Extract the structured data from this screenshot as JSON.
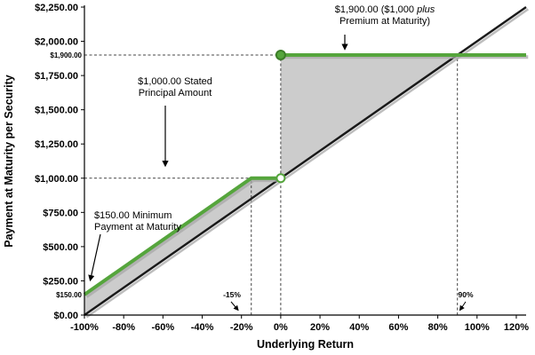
{
  "chart_data": {
    "type": "line",
    "title": "",
    "xlabel": "Underlying Return",
    "ylabel": "Payment at Maturity per Security",
    "xlim": [
      -100,
      125
    ],
    "ylim": [
      0,
      2250
    ],
    "grid": false,
    "legend": "none",
    "shade_color": "#CCCCCC",
    "x_ticks": [
      {
        "value": -100,
        "label": "-100%"
      },
      {
        "value": -80,
        "label": "-80%"
      },
      {
        "value": -60,
        "label": "-60%"
      },
      {
        "value": -40,
        "label": "-40%"
      },
      {
        "value": -20,
        "label": "-20%"
      },
      {
        "value": 0,
        "label": "0%"
      },
      {
        "value": 20,
        "label": "20%"
      },
      {
        "value": 40,
        "label": "40%"
      },
      {
        "value": 60,
        "label": "60%"
      },
      {
        "value": 80,
        "label": "80%"
      },
      {
        "value": 100,
        "label": "100%"
      },
      {
        "value": 120,
        "label": "120%"
      }
    ],
    "y_ticks": [
      {
        "value": 0,
        "label": "$0.00"
      },
      {
        "value": 250,
        "label": "$250.00"
      },
      {
        "value": 500,
        "label": "$500.00"
      },
      {
        "value": 750,
        "label": "$750.00"
      },
      {
        "value": 1000,
        "label": "$1,000.00"
      },
      {
        "value": 1250,
        "label": "$1,250.00"
      },
      {
        "value": 1500,
        "label": "$1,500.00"
      },
      {
        "value": 1750,
        "label": "$1,750.00"
      },
      {
        "value": 2000,
        "label": "$2,000.00"
      },
      {
        "value": 2250,
        "label": "$2,250.00"
      }
    ],
    "extra_y_labels": [
      {
        "value": 1900,
        "label": "$1,900.00"
      },
      {
        "value": 150,
        "label": "$150.00"
      }
    ],
    "series": [
      {
        "name": "underlying-return-reference",
        "color": "#1a1a1a",
        "width": 2.5,
        "shadow": true,
        "segments": [
          [
            [
              -100,
              0
            ],
            [
              125,
              2250
            ]
          ]
        ]
      },
      {
        "name": "payment-at-maturity",
        "color": "#55A53C",
        "width": 4,
        "shadow": true,
        "segments": [
          [
            [
              -100,
              150
            ],
            [
              -15,
              1000
            ],
            [
              0,
              1000
            ]
          ],
          [
            [
              0,
              1900
            ],
            [
              125,
              1900
            ]
          ]
        ]
      }
    ],
    "markers": [
      {
        "x": 0,
        "y": 1000,
        "style": "open"
      },
      {
        "x": 0,
        "y": 1900,
        "style": "filled"
      }
    ],
    "shaded_regions": [
      [
        [
          -100,
          150
        ],
        [
          -15,
          1000
        ],
        [
          0,
          1000
        ],
        [
          -100,
          0
        ]
      ],
      [
        [
          0,
          1000
        ],
        [
          0,
          1900
        ],
        [
          90,
          1900
        ]
      ]
    ],
    "reference_lines": [
      {
        "x1": -100,
        "y1": 1900,
        "x2": 0,
        "y2": 1900
      },
      {
        "x1": -100,
        "y1": 1000,
        "x2": -15,
        "y2": 1000
      },
      {
        "x1": -15,
        "y1": 0,
        "x2": -15,
        "y2": 1000
      },
      {
        "x1": 0,
        "y1": 0,
        "x2": 0,
        "y2": 1900
      },
      {
        "x1": 90,
        "y1": 0,
        "x2": 90,
        "y2": 1900
      }
    ]
  },
  "annotations": {
    "premium": {
      "line1_a": "$1,900.00 ($1,000 ",
      "line1_italic": "plus",
      "line2": "Premium at Maturity)"
    },
    "principal": {
      "line1": "$1,000.00 Stated",
      "line2": "Principal Amount"
    },
    "minimum": {
      "line1": "$150.00 Minimum",
      "line2": "Payment at Maturity"
    },
    "buffer_label": "-15%",
    "cap_label": "90%"
  }
}
